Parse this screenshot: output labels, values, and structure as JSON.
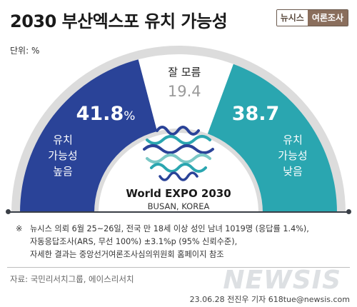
{
  "header": {
    "title": "2030 부산엑스포 유치 가능성",
    "brand_left": "뉴시스",
    "brand_right": "여론조사"
  },
  "unit": "단위: %",
  "chart_data": {
    "type": "pie",
    "style": "semicircle-donut",
    "title": "2030 부산엑스포 유치 가능성",
    "unit": "%",
    "slices": [
      {
        "label_lines": [
          "유치",
          "가능성",
          "높음"
        ],
        "value": 41.8,
        "value_text": "41.8",
        "suffix": "%",
        "color": "#2a4398"
      },
      {
        "label_lines": [
          "잘 모름"
        ],
        "value": 19.4,
        "value_text": "19.4",
        "suffix": "",
        "color": "#ffffff"
      },
      {
        "label_lines": [
          "유치",
          "가능성",
          "낮음"
        ],
        "value": 38.7,
        "value_text": "38.7",
        "suffix": "",
        "color": "#2aa6b0"
      }
    ]
  },
  "logo": {
    "line1": "World EXPO 2030",
    "line2": "BUSAN, KOREA",
    "colors": [
      "#2a4398",
      "#2aa6b0",
      "#7bc8c6"
    ]
  },
  "notes": {
    "mark": "※",
    "lines": [
      "뉴시스 의뢰 6월 25~26일, 전국 만 18세 이상 성인 남녀 1019명 (응답률 1.4%),",
      "자동응답조사(ARS, 무선 100%) ±3.1%p (95% 신뢰수준),",
      "자세한 결과는 중앙선거여론조사심의위원회 홈페이지 참조"
    ]
  },
  "source": "자료: 국민리서치그룹, 에이스리서치",
  "watermark": "NEWSIS",
  "credit": "23.06.28 전진우 기자 618tue@newsis.com",
  "colors": {
    "gray_band": "#dcdcdc",
    "gray_value": "#9a9a9a",
    "dark": "#3a3f47"
  }
}
